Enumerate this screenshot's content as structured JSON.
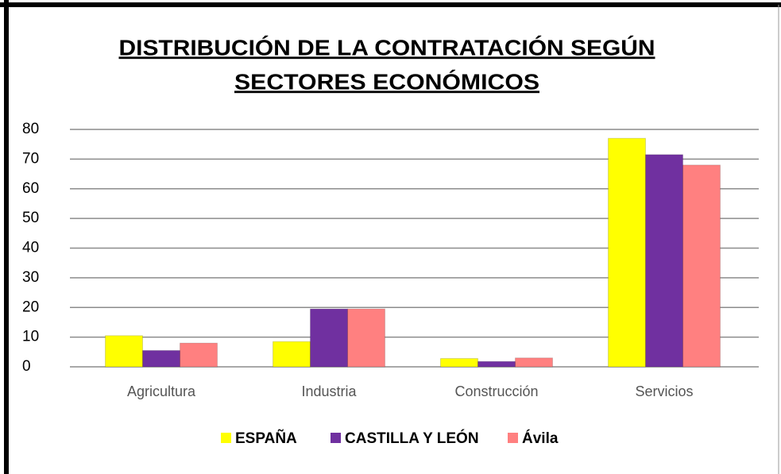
{
  "chart_data": {
    "type": "bar",
    "title": [
      "DISTRIBUCIÓN DE LA CONTRATACIÓN SEGÚN",
      "SECTORES ECONÓMICOS"
    ],
    "categories": [
      "Agricultura",
      "Industria",
      "Construcción",
      "Servicios"
    ],
    "series": [
      {
        "name": "ESPAÑA",
        "color": "#ffff00",
        "values": [
          10.5,
          8.5,
          2.8,
          77
        ]
      },
      {
        "name": "CASTILLA Y LEÓN",
        "color": "#7030a0",
        "values": [
          5.5,
          19.5,
          1.8,
          71.5
        ]
      },
      {
        "name": "Ávila",
        "color": "#ff8080",
        "values": [
          8,
          19.5,
          3,
          68
        ]
      }
    ],
    "ylim": [
      0,
      80
    ],
    "yticks": [
      0,
      10,
      20,
      30,
      40,
      50,
      60,
      70,
      80
    ],
    "grid": true,
    "legend": "bottom"
  }
}
